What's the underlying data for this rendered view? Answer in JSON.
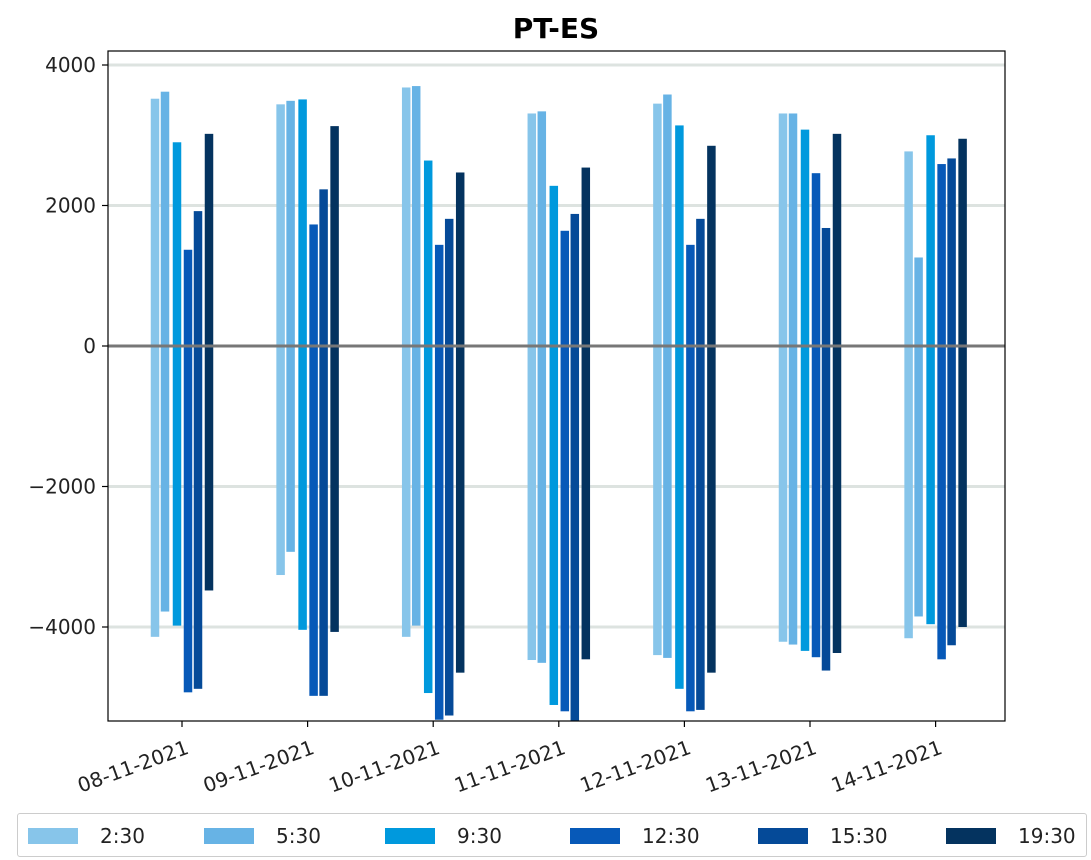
{
  "chart_data": {
    "type": "bar",
    "title": "PT-ES",
    "xlabel": "",
    "ylabel": "",
    "ylim": [
      -5350,
      4200
    ],
    "yticks": [
      -4000,
      -2000,
      0,
      2000,
      4000
    ],
    "ytick_labels": [
      "−4000",
      "−2000",
      "0",
      "2000",
      "4000"
    ],
    "grid": "horizontal",
    "zero_line": true,
    "legend_position": "bottom",
    "categories": [
      "08-11-2021",
      "09-11-2021",
      "10-11-2021",
      "11-11-2021",
      "12-11-2021",
      "13-11-2021",
      "14-11-2021"
    ],
    "series": [
      {
        "name": "2:30",
        "color": "#87c5ea",
        "positive": [
          3520,
          3440,
          3680,
          3310,
          3450,
          3310,
          2770
        ],
        "negative": [
          -4140,
          -3260,
          -4140,
          -4470,
          -4400,
          -4210,
          -4160
        ]
      },
      {
        "name": "5:30",
        "color": "#67b3e5",
        "positive": [
          3620,
          3490,
          3700,
          3340,
          3580,
          3310,
          1260
        ],
        "negative": [
          -3780,
          -2930,
          -3980,
          -4510,
          -4440,
          -4250,
          -3850
        ]
      },
      {
        "name": "9:30",
        "color": "#0099dd",
        "positive": [
          2900,
          3510,
          2640,
          2280,
          3140,
          3080,
          3000
        ],
        "negative": [
          -3980,
          -4040,
          -4940,
          -5110,
          -4880,
          -4340,
          -3960
        ]
      },
      {
        "name": "12:30",
        "color": "#0759b8",
        "positive": [
          1370,
          1730,
          1440,
          1640,
          1440,
          2460,
          2590
        ],
        "negative": [
          -4930,
          -4980,
          -5320,
          -5200,
          -5200,
          -4430,
          -4460
        ]
      },
      {
        "name": "15:30",
        "color": "#054a98",
        "positive": [
          1920,
          2230,
          1810,
          1880,
          1810,
          1680,
          2670
        ],
        "negative": [
          -4880,
          -4980,
          -5260,
          -5370,
          -5180,
          -4620,
          -4260
        ]
      },
      {
        "name": "19:30",
        "color": "#04335f",
        "positive": [
          3020,
          3130,
          2470,
          2540,
          2850,
          3020,
          2950
        ],
        "negative": [
          -3480,
          -4070,
          -4650,
          -4460,
          -4650,
          -4370,
          -4000
        ]
      }
    ]
  }
}
